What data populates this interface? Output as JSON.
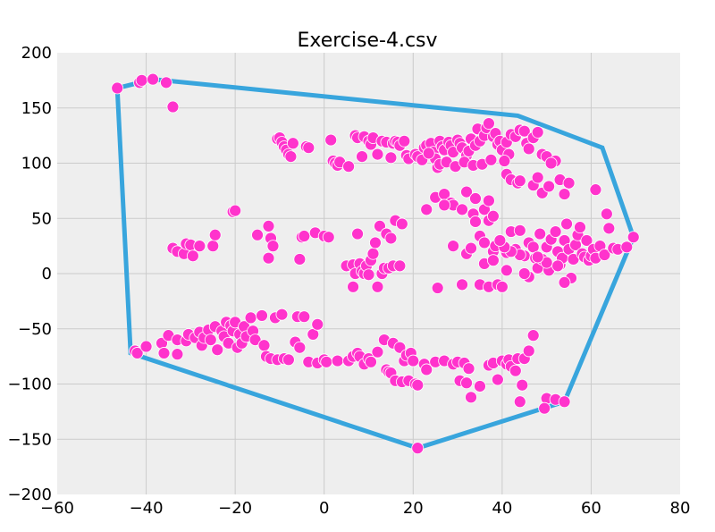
{
  "chart_data": {
    "type": "scatter",
    "title": "Exercise-4.csv",
    "xlabel": "",
    "ylabel": "",
    "xlim": [
      -60,
      80
    ],
    "ylim": [
      -200,
      200
    ],
    "x_ticks": [
      -60,
      -40,
      -20,
      0,
      20,
      40,
      60,
      80
    ],
    "y_ticks": [
      -200,
      -150,
      -100,
      -50,
      0,
      50,
      100,
      150,
      200
    ],
    "x_tick_labels": [
      "−60",
      "−40",
      "−20",
      "0",
      "20",
      "40",
      "60",
      "80"
    ],
    "y_tick_labels": [
      "−200",
      "−150",
      "−100",
      "−50",
      "0",
      "50",
      "100",
      "150",
      "200"
    ],
    "grid": true,
    "background_color": "#eeeeee",
    "point_color": "#ff33cc",
    "hull_color": "#38a5dd",
    "points": [
      [
        -46.5,
        168
      ],
      [
        -41.5,
        173
      ],
      [
        -41,
        175
      ],
      [
        -38.5,
        176
      ],
      [
        -35.5,
        173
      ],
      [
        -34,
        151
      ],
      [
        -10.5,
        122
      ],
      [
        -10,
        123
      ],
      [
        -9.5,
        119
      ],
      [
        -9,
        115
      ],
      [
        -8.5,
        112
      ],
      [
        -8,
        108
      ],
      [
        -7.5,
        106
      ],
      [
        -7,
        118
      ],
      [
        -4,
        115
      ],
      [
        -3.5,
        114
      ],
      [
        1.5,
        121
      ],
      [
        2,
        102
      ],
      [
        2.5,
        100
      ],
      [
        3,
        98
      ],
      [
        3.5,
        101
      ],
      [
        5.5,
        97
      ],
      [
        7,
        125
      ],
      [
        7.5,
        123
      ],
      [
        8.5,
        106
      ],
      [
        9,
        124
      ],
      [
        10,
        120
      ],
      [
        10.5,
        117
      ],
      [
        11,
        123
      ],
      [
        12,
        108
      ],
      [
        13,
        120
      ],
      [
        14,
        119
      ],
      [
        15,
        105
      ],
      [
        15.5,
        118
      ],
      [
        16,
        120
      ],
      [
        16.5,
        119
      ],
      [
        17,
        116
      ],
      [
        18,
        120
      ],
      [
        18.5,
        107
      ],
      [
        19,
        104
      ],
      [
        20.5,
        108
      ],
      [
        21,
        106
      ],
      [
        22,
        103
      ],
      [
        22.5,
        114
      ],
      [
        23,
        116
      ],
      [
        24,
        118
      ],
      [
        24.5,
        110
      ],
      [
        25,
        104
      ],
      [
        26,
        120
      ],
      [
        26.5,
        115
      ],
      [
        27,
        112
      ],
      [
        28,
        119
      ],
      [
        28.5,
        116
      ],
      [
        29,
        110
      ],
      [
        30,
        121
      ],
      [
        30.5,
        118
      ],
      [
        31,
        114
      ],
      [
        32,
        107
      ],
      [
        32.5,
        111
      ],
      [
        33,
        122
      ],
      [
        34,
        116
      ],
      [
        34.5,
        131
      ],
      [
        35,
        120
      ],
      [
        36,
        125
      ],
      [
        36.5,
        132
      ],
      [
        37,
        136
      ],
      [
        38,
        124
      ],
      [
        38.5,
        127
      ],
      [
        39,
        117
      ],
      [
        39.5,
        120
      ],
      [
        40,
        112
      ],
      [
        41,
        119
      ],
      [
        41.5,
        108
      ],
      [
        42,
        126
      ],
      [
        43,
        124
      ],
      [
        44,
        130
      ],
      [
        45,
        129
      ],
      [
        45.5,
        118
      ],
      [
        46,
        113
      ],
      [
        47,
        123
      ],
      [
        48,
        128
      ],
      [
        49,
        108
      ],
      [
        50,
        106
      ],
      [
        52,
        102
      ],
      [
        23.5,
        109
      ],
      [
        25.5,
        96
      ],
      [
        26,
        99
      ],
      [
        27.5,
        101
      ],
      [
        29.5,
        97
      ],
      [
        31.5,
        101
      ],
      [
        33.5,
        98
      ],
      [
        35.5,
        99
      ],
      [
        37.5,
        103
      ],
      [
        40.5,
        102
      ],
      [
        41,
        90
      ],
      [
        42,
        85
      ],
      [
        43.5,
        82
      ],
      [
        44,
        84
      ],
      [
        47,
        80
      ],
      [
        48,
        87
      ],
      [
        49,
        73
      ],
      [
        50.5,
        79
      ],
      [
        51,
        100
      ],
      [
        53,
        85
      ],
      [
        54,
        72
      ],
      [
        55,
        82
      ],
      [
        61,
        76
      ],
      [
        25,
        69
      ],
      [
        27,
        72
      ],
      [
        28.5,
        64
      ],
      [
        29,
        62
      ],
      [
        31,
        58
      ],
      [
        32,
        74
      ],
      [
        33.5,
        54
      ],
      [
        34,
        68
      ],
      [
        36,
        58
      ],
      [
        37,
        66
      ],
      [
        -20.5,
        56
      ],
      [
        -20,
        57
      ],
      [
        -12.5,
        43
      ],
      [
        -12,
        32
      ],
      [
        -11.5,
        25
      ],
      [
        -15,
        35
      ],
      [
        -12.5,
        14
      ],
      [
        -5,
        33
      ],
      [
        -4.5,
        34
      ],
      [
        -2,
        37
      ],
      [
        0,
        34
      ],
      [
        1,
        33
      ],
      [
        -5.5,
        13
      ],
      [
        -34,
        23
      ],
      [
        -33,
        20
      ],
      [
        -31.5,
        18
      ],
      [
        -31,
        27
      ],
      [
        -30,
        26
      ],
      [
        -29.5,
        16
      ],
      [
        -28,
        25
      ],
      [
        -25,
        25
      ],
      [
        -24.5,
        35
      ],
      [
        5,
        7
      ],
      [
        6.5,
        8
      ],
      [
        6.5,
        -12
      ],
      [
        7,
        0
      ],
      [
        7.5,
        36
      ],
      [
        8,
        9
      ],
      [
        8.5,
        2
      ],
      [
        9,
        0
      ],
      [
        9.5,
        7
      ],
      [
        10,
        -1
      ],
      [
        10.5,
        12
      ],
      [
        11,
        18
      ],
      [
        11.5,
        28
      ],
      [
        12,
        -12
      ],
      [
        12.5,
        43
      ],
      [
        13,
        0
      ],
      [
        13.5,
        5
      ],
      [
        14,
        36
      ],
      [
        14.5,
        5
      ],
      [
        15,
        32
      ],
      [
        15.5,
        7
      ],
      [
        16,
        48
      ],
      [
        17,
        7
      ],
      [
        17.5,
        45
      ],
      [
        23,
        58
      ],
      [
        25.5,
        -13
      ],
      [
        27,
        62
      ],
      [
        29,
        25
      ],
      [
        31,
        -10
      ],
      [
        32,
        18
      ],
      [
        33,
        23
      ],
      [
        34,
        47
      ],
      [
        35,
        34
      ],
      [
        36,
        28
      ],
      [
        37,
        48
      ],
      [
        38,
        20
      ],
      [
        38.5,
        25
      ],
      [
        35,
        -10
      ],
      [
        36,
        9
      ],
      [
        37,
        -12
      ],
      [
        38,
        12
      ],
      [
        39,
        -10
      ],
      [
        40,
        -12
      ],
      [
        41,
        19
      ],
      [
        42,
        38
      ],
      [
        43,
        22
      ],
      [
        44,
        39
      ],
      [
        45,
        16
      ],
      [
        46,
        28
      ],
      [
        47,
        24
      ],
      [
        47.5,
        14
      ],
      [
        48,
        5
      ],
      [
        48.5,
        36
      ],
      [
        49,
        13
      ],
      [
        50,
        24
      ],
      [
        50.5,
        3
      ],
      [
        51,
        31
      ],
      [
        52,
        38
      ],
      [
        52.5,
        20
      ],
      [
        53,
        8
      ],
      [
        53.5,
        14
      ],
      [
        54,
        30
      ],
      [
        54.5,
        45
      ],
      [
        55,
        22
      ],
      [
        55.5,
        -4
      ],
      [
        56,
        13
      ],
      [
        56.5,
        26
      ],
      [
        57,
        35
      ],
      [
        57.5,
        42
      ],
      [
        58,
        18
      ],
      [
        58.5,
        15
      ],
      [
        59,
        30
      ],
      [
        59.5,
        12
      ],
      [
        60,
        16
      ],
      [
        60.5,
        22
      ],
      [
        61,
        14
      ],
      [
        62,
        25
      ],
      [
        63,
        17
      ],
      [
        63.5,
        54
      ],
      [
        64,
        41
      ],
      [
        65,
        23
      ],
      [
        66,
        22
      ],
      [
        68,
        24
      ],
      [
        69.5,
        33
      ],
      [
        54,
        -8
      ],
      [
        52.5,
        7
      ],
      [
        50,
        10
      ],
      [
        48,
        15
      ],
      [
        46,
        -3
      ],
      [
        45,
        0
      ],
      [
        44,
        17
      ],
      [
        42,
        20
      ],
      [
        41,
        3
      ],
      [
        40.5,
        24
      ],
      [
        39.5,
        30
      ],
      [
        38,
        52
      ],
      [
        -42.5,
        -70
      ],
      [
        -42,
        -72
      ],
      [
        -40,
        -66
      ],
      [
        -36.5,
        -63
      ],
      [
        -36,
        -72
      ],
      [
        -35,
        -56
      ],
      [
        -33,
        -73
      ],
      [
        -33,
        -60
      ],
      [
        -31,
        -61
      ],
      [
        -30.5,
        -55
      ],
      [
        -29,
        -58
      ],
      [
        -28,
        -53
      ],
      [
        -27.5,
        -65
      ],
      [
        -27,
        -58
      ],
      [
        -26,
        -51
      ],
      [
        -25.5,
        -60
      ],
      [
        -24.5,
        -48
      ],
      [
        -24,
        -69
      ],
      [
        -23,
        -52
      ],
      [
        -22.5,
        -57
      ],
      [
        -22,
        -44
      ],
      [
        -21.5,
        -63
      ],
      [
        -21,
        -47
      ],
      [
        -20.5,
        -52
      ],
      [
        -20,
        -44
      ],
      [
        -19.5,
        -67
      ],
      [
        -19,
        -55
      ],
      [
        -18.5,
        -63
      ],
      [
        -18,
        -48
      ],
      [
        -17.5,
        -57
      ],
      [
        -16.5,
        -40
      ],
      [
        -16,
        -52
      ],
      [
        -15.5,
        -60
      ],
      [
        -14,
        -38
      ],
      [
        -13.5,
        -65
      ],
      [
        -13,
        -75
      ],
      [
        -12,
        -77
      ],
      [
        -11,
        -40
      ],
      [
        -10.5,
        -78
      ],
      [
        -9.5,
        -37
      ],
      [
        -9,
        -77
      ],
      [
        -8,
        -78
      ],
      [
        -6.5,
        -62
      ],
      [
        -6,
        -39
      ],
      [
        -5.5,
        -67
      ],
      [
        -4.5,
        -39
      ],
      [
        -3.5,
        -80
      ],
      [
        -2.5,
        -55
      ],
      [
        -1.5,
        -46
      ],
      [
        -1.5,
        -81
      ],
      [
        0,
        -78
      ],
      [
        0.5,
        -80
      ],
      [
        3,
        -79
      ],
      [
        5.5,
        -79
      ],
      [
        6.5,
        -75
      ],
      [
        7.5,
        -72
      ],
      [
        8,
        -75
      ],
      [
        9,
        -82
      ],
      [
        10,
        -77
      ],
      [
        10.5,
        -80
      ],
      [
        12,
        -71
      ],
      [
        13.5,
        -60
      ],
      [
        14,
        -87
      ],
      [
        14.5,
        -89
      ],
      [
        15,
        -90
      ],
      [
        15.5,
        -63
      ],
      [
        16,
        -97
      ],
      [
        17,
        -67
      ],
      [
        17.5,
        -98
      ],
      [
        18,
        -79
      ],
      [
        18.5,
        -74
      ],
      [
        19,
        -97
      ],
      [
        19.5,
        -72
      ],
      [
        20,
        -79
      ],
      [
        20.5,
        -100
      ],
      [
        21,
        -101
      ],
      [
        22.5,
        -82
      ],
      [
        23,
        -87
      ],
      [
        25,
        -80
      ],
      [
        27,
        -79
      ],
      [
        29,
        -82
      ],
      [
        30,
        -80
      ],
      [
        30.5,
        -97
      ],
      [
        31.5,
        -81
      ],
      [
        32,
        -99
      ],
      [
        32.5,
        -86
      ],
      [
        33,
        -112
      ],
      [
        35,
        -102
      ],
      [
        37,
        -83
      ],
      [
        38,
        -81
      ],
      [
        39,
        -96
      ],
      [
        40,
        -79
      ],
      [
        41,
        -82
      ],
      [
        41.5,
        -78
      ],
      [
        42,
        -84
      ],
      [
        43,
        -88
      ],
      [
        43.5,
        -77
      ],
      [
        44.5,
        -101
      ],
      [
        45,
        -77
      ],
      [
        46,
        -70
      ],
      [
        47,
        -56
      ],
      [
        50,
        -113
      ],
      [
        52,
        -114
      ],
      [
        54,
        -116
      ],
      [
        44,
        -116
      ],
      [
        49.5,
        -122
      ],
      [
        21,
        -158
      ]
    ],
    "hull": [
      [
        -46.5,
        168
      ],
      [
        -38.5,
        176
      ],
      [
        43.5,
        143
      ],
      [
        62.5,
        114
      ],
      [
        69.5,
        33
      ],
      [
        54,
        -116
      ],
      [
        21,
        -158
      ],
      [
        -43.5,
        -72
      ],
      [
        -46.5,
        168
      ]
    ]
  }
}
